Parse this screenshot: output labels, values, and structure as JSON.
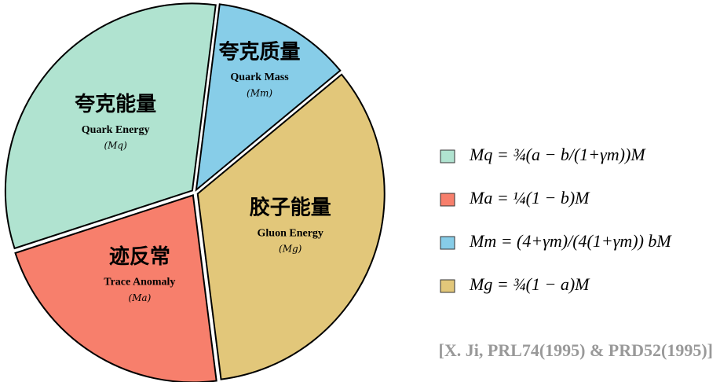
{
  "chart_data": {
    "type": "pie",
    "categories": [
      "Quark Energy",
      "Quark Mass",
      "Gluon Energy",
      "Trace Anomaly"
    ],
    "labels_cn": [
      "夸克能量",
      "夸克质量",
      "胶子能量",
      "迹反常"
    ],
    "symbols": [
      "(Mq)",
      "(Mm)",
      "(Mg)",
      "(Ma)"
    ],
    "values": [
      32,
      12,
      34,
      22
    ],
    "colors": [
      "#b0e3d0",
      "#87cde8",
      "#e2c77a",
      "#f77f6c"
    ],
    "legend": [
      "Mq = ¾(a − b/(1+γm))M",
      "Ma = ¼(1 − b)M",
      "Mm = (4+γm)/(4(1+γm)) bM",
      "Mg = ¾(1 − a)M"
    ],
    "legend_colors": [
      "#b0e3d0",
      "#f77f6c",
      "#87cde8",
      "#e2c77a"
    ],
    "source": "[X. Ji, PRL74(1995) & PRD52(1995)]"
  }
}
